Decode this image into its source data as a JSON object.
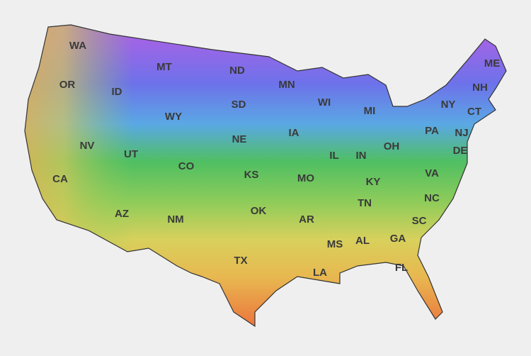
{
  "states": [
    "WA",
    "OR",
    "ID",
    "MT",
    "ND",
    "MN",
    "WI",
    "MI",
    "NY",
    "ME",
    "NH",
    "CT",
    "NJ",
    "DE",
    "PA",
    "OH",
    "IN",
    "IL",
    "IA",
    "NE",
    "SD",
    "WY",
    "NV",
    "UT",
    "CO",
    "CA",
    "AZ",
    "NM",
    "KS",
    "MO",
    "KY",
    "VA",
    "NC",
    "TN",
    "SC",
    "GA",
    "AL",
    "MS",
    "AR",
    "OK",
    "TX",
    "LA",
    "FL"
  ]
}
